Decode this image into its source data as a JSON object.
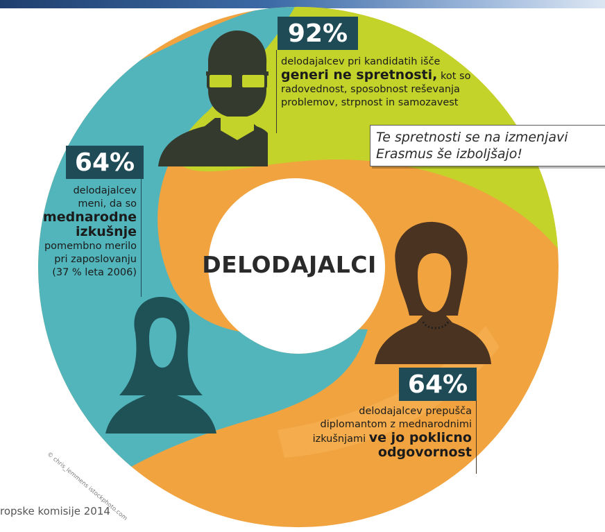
{
  "colors": {
    "green": "#c3d32a",
    "orange": "#f1a340",
    "teal": "#52b5bb",
    "dark_box": "#1e4b55",
    "silhouette_green": "#343a2e",
    "silhouette_orange": "#4a3320",
    "silhouette_teal": "#1f5257"
  },
  "icons": [
    "man-with-glasses-icon",
    "woman-short-hair-icon",
    "woman-long-hair-icon"
  ],
  "center_label": "DELODAJALCI",
  "callout": {
    "line1": "Te spretnosti se na izmenjavi",
    "line2": "Erasmus še izboljšajo!"
  },
  "stat_top": {
    "percent": "92%",
    "line1": "delodajalcev pri kandidatih išče",
    "line2_bold": "generi ne spretnosti,",
    "line2_rest": " kot so",
    "line3": "radovednost, sposobnost reševanja",
    "line4": "problemov, strpnost in samozavest"
  },
  "stat_left": {
    "percent": "64%",
    "line1": "delodajalcev",
    "line2": "meni, da so",
    "line3_bold": "mednarodne",
    "line4_bold": "izkušnje",
    "line5": "pomembno merilo",
    "line6": "pri zaposlovanju",
    "line7": "(37 % leta 2006)"
  },
  "stat_bottom": {
    "percent": "64%",
    "line1": "delodajalcev prepušča",
    "line2": "diplomantom z mednarodnimi",
    "line3_rest": "izkušnjami ",
    "line3_bold": "ve jo poklicno",
    "line4_bold": "odgovornost"
  },
  "credit": "© chris_lemmens istockphoto.com",
  "footer": "ropske komisije 2014"
}
